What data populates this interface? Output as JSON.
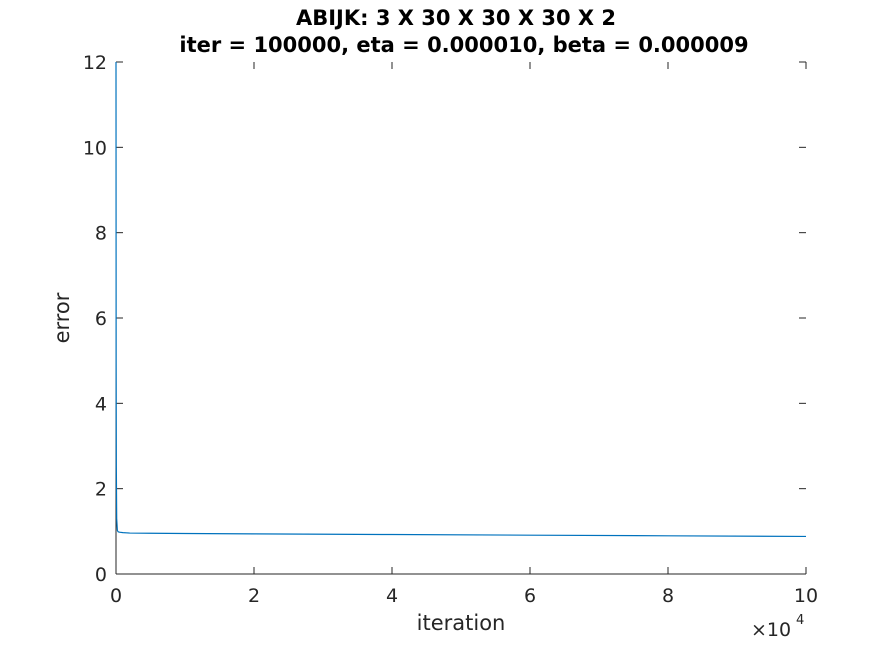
{
  "chart_data": {
    "type": "line",
    "title": "ABIJK: 3 X 30 X 30 X 30 X 2",
    "subtitle": "iter = 100000, eta = 0.000010, beta = 0.000009",
    "xlabel": "iteration",
    "ylabel": "error",
    "xlim": [
      0,
      100000
    ],
    "ylim": [
      0,
      12
    ],
    "x_ticks": [
      0,
      20000,
      40000,
      60000,
      80000,
      100000
    ],
    "x_tick_labels": [
      "0",
      "2",
      "4",
      "6",
      "8",
      "10"
    ],
    "x_exponent_base": "×10",
    "x_exponent_power": "4",
    "y_ticks": [
      0,
      2,
      4,
      6,
      8,
      10,
      12
    ],
    "y_tick_labels": [
      "0",
      "2",
      "4",
      "6",
      "8",
      "10",
      "12"
    ],
    "grid": false,
    "line_color": "#0072BD",
    "series": [
      {
        "x": [
          0,
          20,
          50,
          100,
          200,
          300,
          500,
          1000,
          2000,
          5000,
          10000,
          20000,
          40000,
          60000,
          80000,
          100000
        ],
        "values": [
          12,
          5,
          2.5,
          1.3,
          1.02,
          0.99,
          0.98,
          0.97,
          0.96,
          0.955,
          0.95,
          0.94,
          0.925,
          0.91,
          0.895,
          0.88
        ]
      }
    ]
  }
}
